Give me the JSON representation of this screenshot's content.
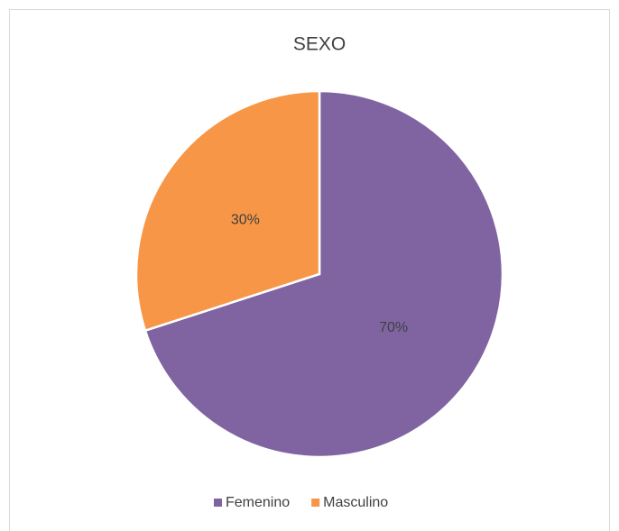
{
  "chart_data": {
    "type": "pie",
    "title": "SEXO",
    "categories": [
      "Femenino",
      "Masculino"
    ],
    "values": [
      70,
      30
    ],
    "value_labels": [
      "70%",
      "30%"
    ],
    "colors": [
      "#8064a2",
      "#f79646"
    ],
    "legend": "bottom"
  }
}
